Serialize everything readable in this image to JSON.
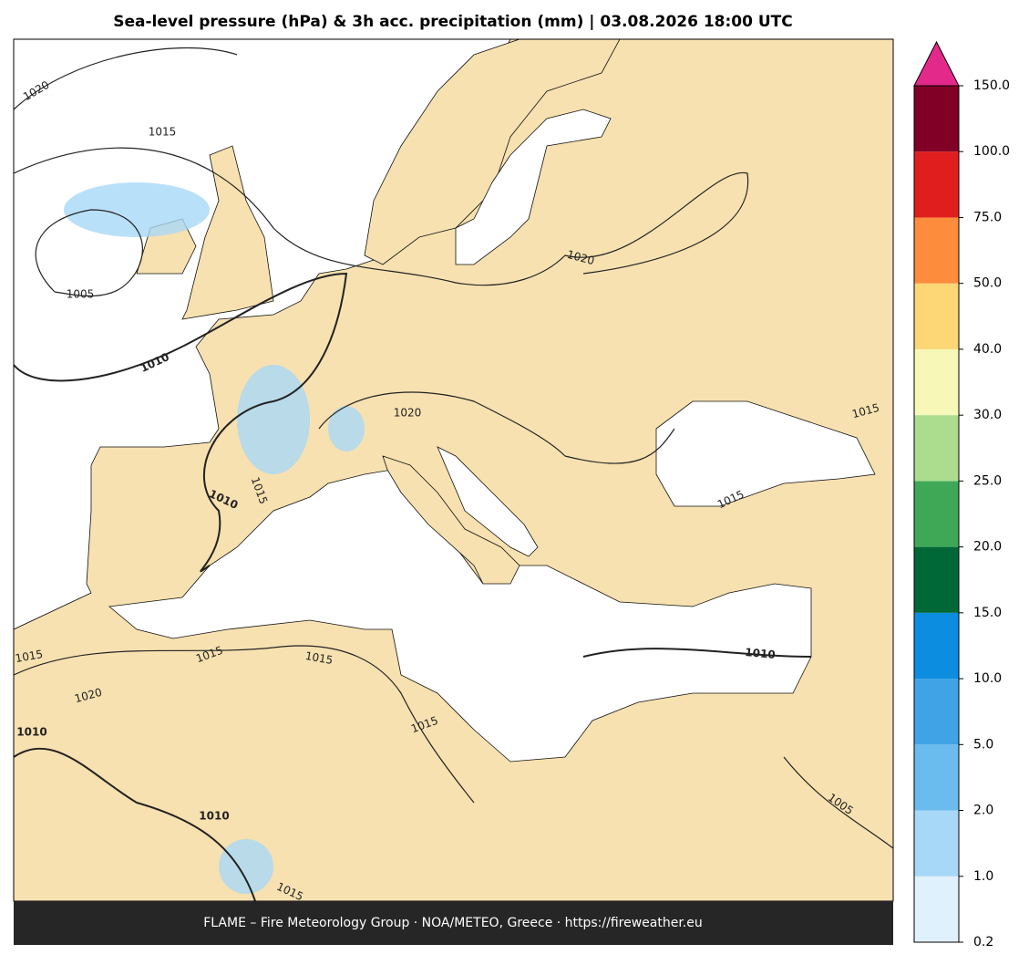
{
  "header": {
    "title": "Sea-level pressure (hPa) & 3h acc. precipitation (mm)  |  03.08.2026 18:00 UTC"
  },
  "isobar_labels": [
    1020,
    1015,
    1005,
    1010,
    1020,
    1020,
    1015,
    1010,
    1015,
    1015,
    1015,
    1015,
    1015,
    1020,
    1010,
    1015,
    1010,
    1010,
    1005,
    1015
  ],
  "colorbar": {
    "ticks": [
      {
        "value": 0.2,
        "label": "0.2"
      },
      {
        "value": 1,
        "label": "1.0"
      },
      {
        "value": 2,
        "label": "2.0"
      },
      {
        "value": 5,
        "label": "5.0"
      },
      {
        "value": 10,
        "label": "10.0"
      },
      {
        "value": 15,
        "label": "15.0"
      },
      {
        "value": 20,
        "label": "20.0"
      },
      {
        "value": 25,
        "label": "25.0"
      },
      {
        "value": 30,
        "label": "30.0"
      },
      {
        "value": 40,
        "label": "40.0"
      },
      {
        "value": 50,
        "label": "50.0"
      },
      {
        "value": 75,
        "label": "75.0"
      },
      {
        "value": 100,
        "label": "100.0"
      },
      {
        "value": 150,
        "label": "150.0"
      }
    ],
    "colors": [
      "#dff1fd",
      "#a8d8f7",
      "#6bbcee",
      "#3fa3e6",
      "#0c8ddf",
      "#006837",
      "#3fa857",
      "#acdd8e",
      "#f7f8b8",
      "#fdd676",
      "#fd8c3c",
      "#e11e1e",
      "#800026"
    ],
    "extend_color": "#e32a8a"
  },
  "footer": {
    "text": "FLAME – Fire Meteorology Group · NOA/METEO, Greece · https://fireweather.eu"
  }
}
